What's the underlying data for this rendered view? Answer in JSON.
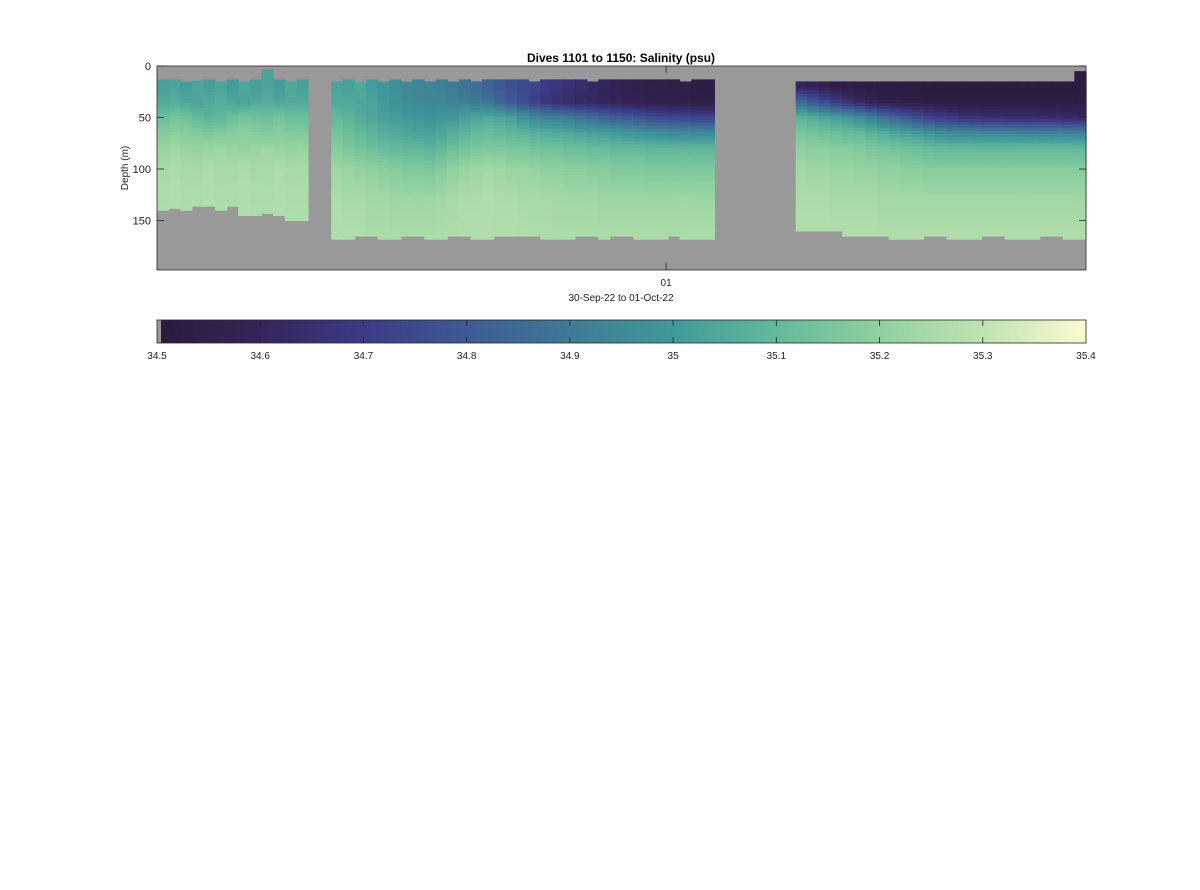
{
  "chart_data": {
    "type": "heatmap",
    "title": "Dives 1101 to 1150: Salinity (psu)",
    "ylabel": "Depth (m)",
    "xlabel": "30-Sep-22 to 01-Oct-22",
    "x_tick_labels": [
      "01"
    ],
    "x_tick_at_fraction_of_axis": 0.548,
    "y_reversed": true,
    "ylim": [
      0,
      198
    ],
    "yticks": [
      0,
      50,
      100,
      150
    ],
    "n_profiles": 80,
    "missing_profiles": [
      [
        13,
        14
      ],
      [
        48,
        54
      ]
    ],
    "surface_depth_m": [
      13,
      13,
      15,
      14,
      13,
      15,
      13,
      15,
      13,
      3,
      13,
      15,
      13,
      15,
      13,
      15,
      13,
      15,
      13,
      15,
      13,
      15,
      13,
      15,
      13,
      15,
      13,
      15,
      13,
      13,
      13,
      13,
      15,
      13,
      13,
      13,
      13,
      15,
      13,
      13,
      13,
      13,
      13,
      13,
      13,
      15,
      13,
      13,
      13,
      13,
      13,
      13,
      13,
      13,
      13,
      15,
      15,
      15,
      15,
      15,
      15,
      15,
      15,
      15,
      15,
      15,
      15,
      15,
      15,
      15,
      15,
      15,
      15,
      15,
      15,
      15,
      15,
      15,
      15,
      5
    ],
    "bottom_depth_m": [
      140,
      138,
      140,
      136,
      136,
      140,
      136,
      145,
      145,
      143,
      145,
      150,
      150,
      165,
      165,
      168,
      168,
      165,
      165,
      168,
      168,
      165,
      165,
      168,
      168,
      165,
      165,
      168,
      168,
      165,
      165,
      165,
      165,
      168,
      168,
      168,
      165,
      165,
      168,
      165,
      165,
      168,
      168,
      168,
      165,
      168,
      168,
      168,
      165,
      165,
      165,
      165,
      165,
      165,
      165,
      160,
      160,
      160,
      160,
      165,
      165,
      165,
      165,
      168,
      168,
      168,
      165,
      165,
      168,
      168,
      168,
      165,
      165,
      168,
      168,
      168,
      165,
      165,
      168,
      168
    ],
    "salinity_layers_psu": [
      {
        "depth_m": 20,
        "values": [
          35.02,
          35.03,
          35.01,
          35.04,
          35.02,
          35.03,
          35.01,
          35.04,
          35.02,
          35.03,
          35.01,
          35.04,
          35.02,
          35.03,
          35.01,
          35.03,
          35.02,
          35.04,
          35.01,
          34.99,
          34.97,
          34.95,
          34.94,
          34.93,
          34.92,
          34.9,
          34.88,
          34.86,
          34.83,
          34.8,
          34.77,
          34.75,
          34.73,
          34.7,
          34.68,
          34.66,
          34.64,
          34.62,
          34.6,
          34.58,
          34.57,
          34.56,
          34.55,
          34.55,
          34.54,
          34.54,
          34.53,
          34.53,
          34.53,
          34.53,
          34.53,
          34.53,
          34.53,
          34.53,
          34.53,
          34.6,
          34.58,
          34.56,
          34.55,
          34.54,
          34.53,
          34.52,
          34.52,
          34.51,
          34.51,
          34.51,
          34.51,
          34.51,
          34.51,
          34.51,
          34.51,
          34.51,
          34.51,
          34.51,
          34.51,
          34.51,
          34.51,
          34.51,
          34.51,
          34.51
        ]
      },
      {
        "depth_m": 35,
        "values": [
          35.05,
          35.06,
          35.04,
          35.03,
          35.05,
          35.06,
          35.04,
          35.03,
          35.05,
          35.06,
          35.04,
          35.05,
          35.05,
          35.06,
          35.04,
          35.05,
          35.05,
          35.04,
          35.03,
          35.0,
          34.98,
          34.96,
          34.95,
          34.94,
          34.94,
          34.93,
          34.92,
          34.9,
          34.88,
          34.84,
          34.8,
          34.76,
          34.72,
          34.68,
          34.65,
          34.63,
          34.62,
          34.61,
          34.6,
          34.59,
          34.58,
          34.57,
          34.56,
          34.55,
          34.55,
          34.55,
          34.54,
          34.54,
          34.54,
          34.54,
          34.54,
          34.54,
          34.54,
          34.54,
          34.54,
          34.85,
          34.8,
          34.75,
          34.7,
          34.66,
          34.62,
          34.58,
          34.56,
          34.55,
          34.54,
          34.54,
          34.53,
          34.53,
          34.53,
          34.53,
          34.53,
          34.53,
          34.53,
          34.53,
          34.53,
          34.53,
          34.53,
          34.53,
          34.53,
          34.53
        ]
      },
      {
        "depth_m": 50,
        "values": [
          35.12,
          35.14,
          35.13,
          35.1,
          35.08,
          35.09,
          35.12,
          35.14,
          35.13,
          35.12,
          35.14,
          35.12,
          35.12,
          35.14,
          35.12,
          35.1,
          35.08,
          35.06,
          35.04,
          35.02,
          35.01,
          35.0,
          34.99,
          34.98,
          34.99,
          35.0,
          35.02,
          35.04,
          35.05,
          35.04,
          35.02,
          34.98,
          34.95,
          34.93,
          34.92,
          34.9,
          34.88,
          34.86,
          34.84,
          34.82,
          34.8,
          34.78,
          34.76,
          34.75,
          34.74,
          34.74,
          34.73,
          34.73,
          34.73,
          34.73,
          34.73,
          34.73,
          34.73,
          34.73,
          34.73,
          35.08,
          35.06,
          35.04,
          35.02,
          35.0,
          34.96,
          34.92,
          34.88,
          34.84,
          34.8,
          34.76,
          34.72,
          34.7,
          34.68,
          34.66,
          34.66,
          34.65,
          34.65,
          34.64,
          34.64,
          34.64,
          34.63,
          34.63,
          34.62,
          34.62
        ]
      },
      {
        "depth_m": 65,
        "values": [
          35.18,
          35.19,
          35.18,
          35.17,
          35.16,
          35.17,
          35.18,
          35.19,
          35.18,
          35.17,
          35.18,
          35.17,
          35.17,
          35.18,
          35.17,
          35.14,
          35.12,
          35.1,
          35.08,
          35.06,
          35.05,
          35.04,
          35.03,
          35.02,
          35.04,
          35.06,
          35.08,
          35.1,
          35.11,
          35.1,
          35.09,
          35.08,
          35.07,
          35.06,
          35.05,
          35.04,
          35.03,
          35.02,
          35.01,
          35.0,
          34.99,
          34.98,
          34.97,
          34.96,
          34.95,
          34.95,
          34.95,
          34.95,
          34.95,
          34.95,
          34.95,
          34.95,
          34.95,
          34.95,
          34.95,
          35.15,
          35.14,
          35.13,
          35.12,
          35.11,
          35.1,
          35.08,
          35.06,
          35.04,
          35.02,
          35.0,
          34.98,
          34.96,
          34.95,
          34.95,
          34.94,
          34.94,
          34.94,
          34.94,
          34.93,
          34.93,
          34.93,
          34.93,
          34.93,
          34.93
        ]
      },
      {
        "depth_m": 80,
        "values": [
          35.22,
          35.23,
          35.22,
          35.21,
          35.22,
          35.23,
          35.22,
          35.21,
          35.22,
          35.23,
          35.22,
          35.21,
          35.22,
          35.22,
          35.21,
          35.18,
          35.16,
          35.14,
          35.12,
          35.11,
          35.1,
          35.09,
          35.09,
          35.08,
          35.1,
          35.12,
          35.14,
          35.15,
          35.16,
          35.16,
          35.15,
          35.15,
          35.14,
          35.13,
          35.13,
          35.12,
          35.12,
          35.11,
          35.11,
          35.1,
          35.1,
          35.1,
          35.09,
          35.09,
          35.09,
          35.09,
          35.09,
          35.09,
          35.09,
          35.09,
          35.09,
          35.09,
          35.09,
          35.09,
          35.09,
          35.2,
          35.19,
          35.19,
          35.18,
          35.18,
          35.17,
          35.16,
          35.15,
          35.14,
          35.13,
          35.12,
          35.11,
          35.1,
          35.1,
          35.1,
          35.1,
          35.1,
          35.1,
          35.1,
          35.1,
          35.1,
          35.1,
          35.1,
          35.1,
          35.1
        ]
      },
      {
        "depth_m": 100,
        "values": [
          35.25,
          35.26,
          35.25,
          35.25,
          35.26,
          35.25,
          35.25,
          35.26,
          35.25,
          35.25,
          35.26,
          35.25,
          35.25,
          35.26,
          35.25,
          35.23,
          35.22,
          35.21,
          35.2,
          35.19,
          35.18,
          35.17,
          35.17,
          35.16,
          35.18,
          35.2,
          35.22,
          35.23,
          35.24,
          35.23,
          35.22,
          35.22,
          35.21,
          35.2,
          35.2,
          35.19,
          35.19,
          35.18,
          35.18,
          35.17,
          35.17,
          35.17,
          35.16,
          35.16,
          35.16,
          35.16,
          35.16,
          35.16,
          35.16,
          35.16,
          35.16,
          35.16,
          35.16,
          35.16,
          35.16,
          35.24,
          35.23,
          35.23,
          35.22,
          35.22,
          35.21,
          35.21,
          35.2,
          35.2,
          35.19,
          35.19,
          35.18,
          35.18,
          35.18,
          35.18,
          35.18,
          35.18,
          35.18,
          35.18,
          35.18,
          35.18,
          35.18,
          35.18,
          35.18,
          35.18
        ]
      },
      {
        "depth_m": 130,
        "values": [
          35.26,
          35.27,
          35.26,
          35.26,
          35.27,
          35.26,
          35.26,
          35.27,
          35.26,
          35.26,
          35.27,
          35.26,
          35.26,
          35.27,
          35.26,
          35.26,
          35.25,
          35.25,
          35.24,
          35.24,
          35.23,
          35.23,
          35.23,
          35.23,
          35.24,
          35.25,
          35.26,
          35.26,
          35.27,
          35.26,
          35.26,
          35.25,
          35.25,
          35.25,
          35.24,
          35.24,
          35.24,
          35.24,
          35.23,
          35.23,
          35.23,
          35.23,
          35.23,
          35.23,
          35.23,
          35.23,
          35.23,
          35.23,
          35.23,
          35.23,
          35.23,
          35.23,
          35.23,
          35.23,
          35.23,
          35.26,
          35.26,
          35.26,
          35.25,
          35.25,
          35.25,
          35.25,
          35.24,
          35.24,
          35.24,
          35.24,
          35.24,
          35.24,
          35.24,
          35.24,
          35.24,
          35.24,
          35.24,
          35.24,
          35.24,
          35.24,
          35.24,
          35.24,
          35.24,
          35.24
        ]
      },
      {
        "depth_m": 170,
        "values": [
          35.27,
          35.27,
          35.27,
          35.27,
          35.27,
          35.27,
          35.27,
          35.27,
          35.27,
          35.27,
          35.27,
          35.27,
          35.27,
          35.27,
          35.27,
          35.27,
          35.27,
          35.27,
          35.26,
          35.26,
          35.26,
          35.26,
          35.26,
          35.26,
          35.26,
          35.26,
          35.27,
          35.27,
          35.27,
          35.27,
          35.27,
          35.27,
          35.26,
          35.26,
          35.26,
          35.26,
          35.26,
          35.26,
          35.26,
          35.26,
          35.26,
          35.26,
          35.26,
          35.26,
          35.26,
          35.26,
          35.26,
          35.26,
          35.26,
          35.26,
          35.26,
          35.26,
          35.26,
          35.26,
          35.26,
          35.27,
          35.27,
          35.27,
          35.27,
          35.27,
          35.27,
          35.27,
          35.27,
          35.27,
          35.27,
          35.27,
          35.27,
          35.27,
          35.27,
          35.27,
          35.27,
          35.27,
          35.27,
          35.27,
          35.27,
          35.27,
          35.27,
          35.27,
          35.27,
          35.27
        ]
      }
    ],
    "colorbar": {
      "range": [
        34.5,
        35.4
      ],
      "ticks": [
        34.5,
        34.6,
        34.7,
        34.8,
        34.9,
        35,
        35.1,
        35.2,
        35.3,
        35.4
      ],
      "tick_labels": [
        "34.5",
        "34.6",
        "34.7",
        "34.8",
        "34.9",
        "35",
        "35.1",
        "35.2",
        "35.3",
        "35.4"
      ]
    },
    "colors": {
      "missing": "#999999",
      "colormap": [
        "#2a1b3d",
        "#35255a",
        "#3c3b86",
        "#3e5a94",
        "#3f7a96",
        "#41999a",
        "#63b99b",
        "#8fd09f",
        "#bfe3b0",
        "#fbfbd0"
      ]
    },
    "grid": false,
    "legend": "none"
  }
}
